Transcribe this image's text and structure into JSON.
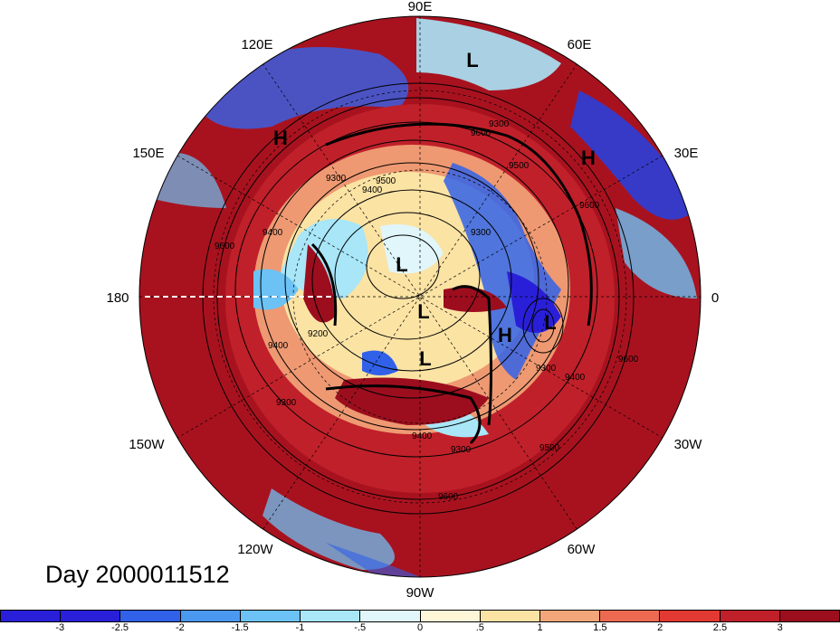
{
  "map": {
    "type": "polar-stereographic-filled-contour",
    "hemisphere": "northern",
    "longitude_labels": [
      "90E",
      "60E",
      "30E",
      "0",
      "30W",
      "60W",
      "90W",
      "120W",
      "150W",
      "180",
      "150E",
      "120E"
    ],
    "pressure_centers": [
      "L",
      "H",
      "H",
      "L",
      "L",
      "H",
      "L",
      "L"
    ],
    "contour_labels": [
      "9600",
      "9300",
      "9500",
      "9400",
      "9600",
      "9200",
      "9400",
      "9300",
      "9400",
      "9300",
      "9400",
      "9500",
      "9300",
      "9600",
      "9500",
      "9600",
      "9300",
      "9600",
      "9400",
      "9300"
    ]
  },
  "day_label": "Day 2000011512",
  "colorbar": {
    "colors": [
      "#2a1fd8",
      "#3161e8",
      "#4b98f0",
      "#6cc2f4",
      "#a8e6f8",
      "#e0f6fb",
      "#fdf7d8",
      "#fbe3a4",
      "#f3a67a",
      "#ec6a52",
      "#e23a32",
      "#c0202a",
      "#9c0e1e"
    ],
    "tick_labels": [
      "-3",
      "-2.5",
      "-2",
      "-1.5",
      "-1",
      "-.5",
      "0",
      ".5",
      "1",
      "1.5",
      "2",
      "2.5",
      "3"
    ]
  }
}
